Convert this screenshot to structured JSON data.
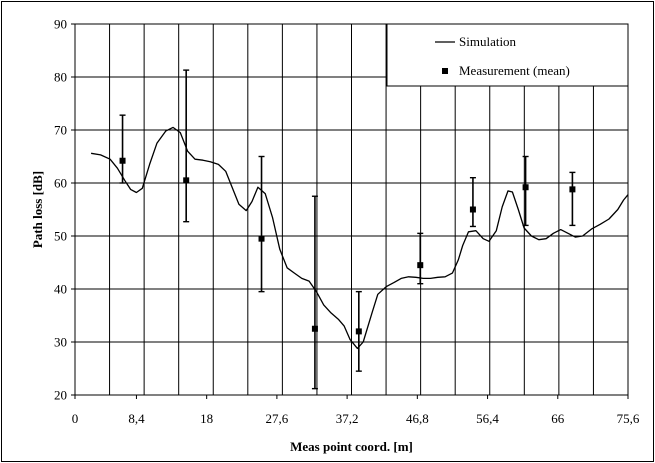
{
  "chart_data": {
    "type": "line",
    "xlabel": "Meas point coord. [m]",
    "ylabel": "Path loss [dB]",
    "xlim": [
      0,
      75.6
    ],
    "ylim": [
      20,
      90
    ],
    "x_ticks": [
      "0",
      "8,4",
      "18",
      "27,6",
      "37,2",
      "46,8",
      "56,4",
      "66",
      "75,6"
    ],
    "x_tick_values": [
      0,
      8.4,
      18,
      27.6,
      37.2,
      46.8,
      56.4,
      66,
      75.6
    ],
    "y_ticks": [
      "20",
      "30",
      "40",
      "50",
      "60",
      "70",
      "80",
      "90"
    ],
    "y_tick_values": [
      20,
      30,
      40,
      50,
      60,
      70,
      80,
      90
    ],
    "grid": true,
    "legend_position": "top-right",
    "series": [
      {
        "name": "Simulation",
        "kind": "line",
        "color": "#000000",
        "x": [
          2.2,
          3.5,
          4.8,
          5.8,
          6.8,
          7.6,
          8.4,
          9.2,
          10.2,
          11.2,
          12.4,
          13.4,
          14.4,
          15.4,
          16.4,
          17.5,
          18.5,
          19.6,
          20.6,
          21.4,
          22.4,
          23.4,
          24.2,
          25.0,
          26.0,
          27.0,
          28.0,
          29.0,
          30.0,
          31.0,
          32.0,
          33.0,
          34.0,
          35.0,
          36.0,
          36.8,
          37.6,
          38.6,
          39.4,
          40.6,
          41.4,
          42.6,
          43.6,
          44.6,
          45.6,
          46.6,
          47.6,
          48.6,
          49.6,
          50.6,
          51.6,
          52.4,
          53.0,
          53.8,
          54.8,
          55.8,
          56.6,
          57.6,
          58.4,
          59.2,
          59.8,
          60.6,
          61.4,
          62.4,
          63.4,
          64.4,
          65.4,
          66.4,
          67.4,
          68.4,
          69.4,
          70.6,
          71.8,
          73.0,
          74.2,
          75.0,
          75.6
        ],
        "y": [
          65.6,
          65.3,
          64.5,
          62.8,
          60.5,
          58.8,
          58.2,
          59.0,
          63.5,
          67.5,
          69.8,
          70.5,
          69.5,
          66.0,
          64.5,
          64.3,
          64.0,
          63.5,
          62.2,
          59.5,
          56.0,
          54.8,
          56.5,
          59.2,
          58.0,
          53.5,
          47.5,
          44.0,
          43.0,
          42.0,
          41.5,
          39.5,
          37.0,
          35.5,
          34.3,
          33.0,
          30.5,
          28.8,
          30.0,
          35.5,
          39.0,
          40.5,
          41.2,
          42.0,
          42.3,
          42.2,
          42.0,
          42.0,
          42.2,
          42.3,
          43.0,
          45.5,
          48.2,
          50.8,
          51.0,
          49.5,
          49.0,
          51.0,
          55.5,
          58.5,
          58.3,
          55.0,
          51.5,
          50.0,
          49.3,
          49.5,
          50.5,
          51.2,
          50.5,
          49.8,
          50.0,
          51.3,
          52.2,
          53.2,
          55.0,
          56.8,
          57.8
        ]
      },
      {
        "name": "Measurement (mean)",
        "kind": "scatter_errorbar",
        "color": "#000000",
        "x": [
          6.5,
          15.2,
          25.5,
          32.8,
          38.8,
          47.2,
          54.4,
          61.6,
          68.0
        ],
        "y": [
          64.2,
          60.5,
          49.5,
          32.5,
          32.0,
          44.5,
          55.0,
          59.2,
          58.8
        ],
        "y_low": [
          60.0,
          52.7,
          39.5,
          21.2,
          24.5,
          41.0,
          51.8,
          52.0,
          52.0
        ],
        "y_high": [
          72.8,
          81.3,
          65.0,
          57.5,
          39.5,
          50.5,
          61.0,
          65.0,
          62.0
        ]
      }
    ]
  }
}
